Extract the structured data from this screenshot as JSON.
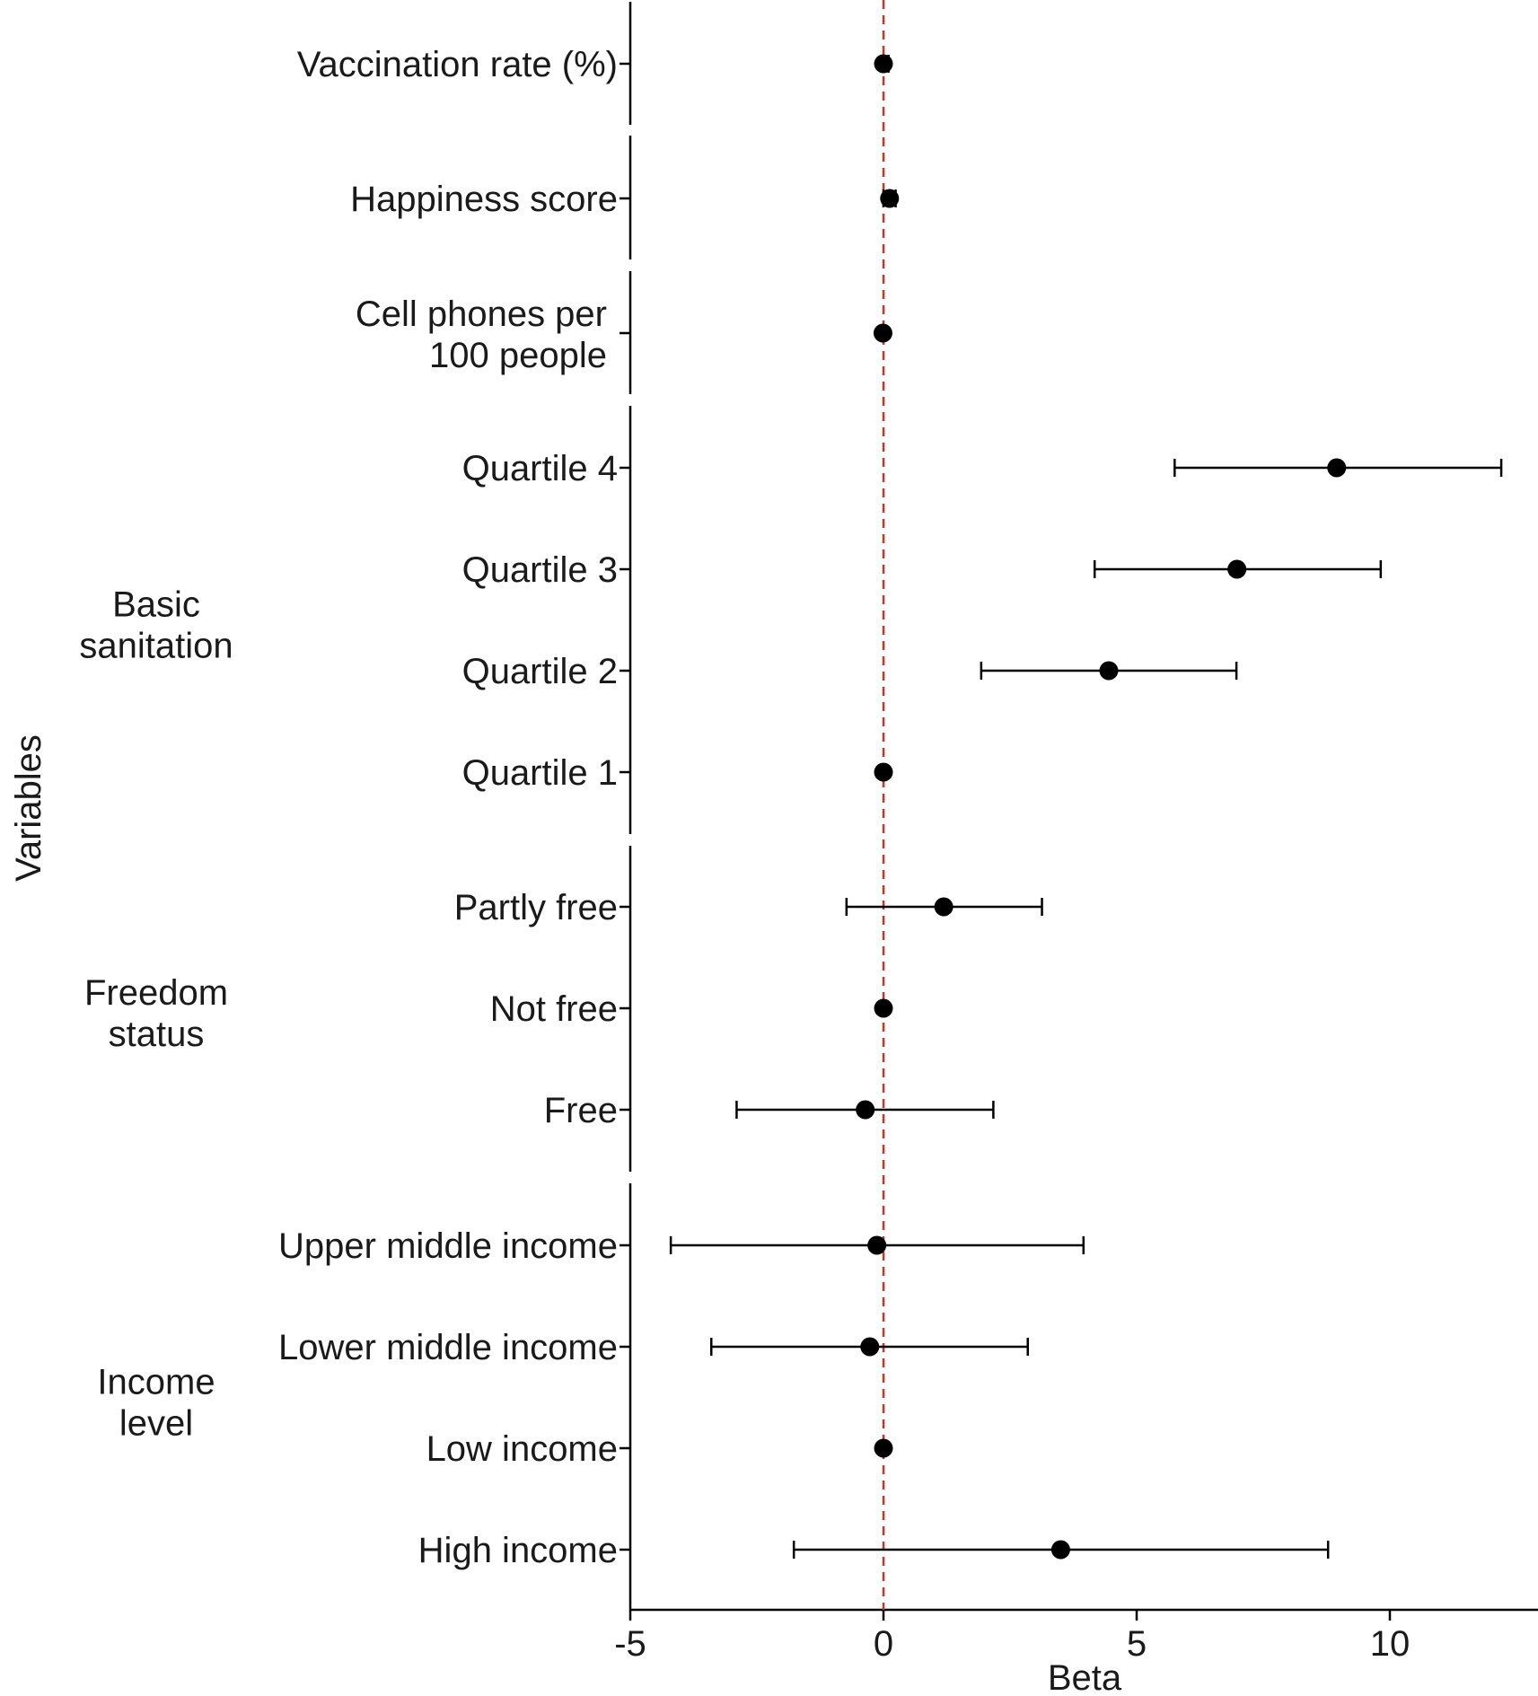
{
  "chart_data": {
    "type": "forest",
    "title": "",
    "xlabel": "Beta",
    "ylabel": "Variables",
    "xlim": [
      -5,
      12.9
    ],
    "x_ticks": [
      -5,
      0,
      5,
      10
    ],
    "x_tick_labels": [
      "-5",
      "0",
      "5",
      "10"
    ],
    "reference_line": {
      "x": 0,
      "color": "#c0392b",
      "style": "dashed"
    },
    "colors": {
      "points": "#000000",
      "error_bars": "#000000",
      "axis": "#000000"
    },
    "groups": [
      {
        "label": [
          "",
          ""
        ],
        "rows": [
          {
            "label": [
              "Vaccination rate (%)"
            ],
            "beta": 0.0,
            "ci_low": -0.05,
            "ci_high": 0.1
          }
        ]
      },
      {
        "label": [
          "",
          ""
        ],
        "rows": [
          {
            "label": [
              "Happiness score"
            ],
            "beta": 0.12,
            "ci_low": 0.0,
            "ci_high": 0.24
          }
        ]
      },
      {
        "label": [
          "",
          ""
        ],
        "rows": [
          {
            "label": [
              "Cell phones per",
              "100 people"
            ],
            "beta": -0.01,
            "ci_low": -0.03,
            "ci_high": 0.01
          }
        ]
      },
      {
        "label": [
          "Basic",
          "sanitation"
        ],
        "rows": [
          {
            "label": [
              "Quartile 4"
            ],
            "beta": 8.95,
            "ci_low": 5.75,
            "ci_high": 12.2
          },
          {
            "label": [
              "Quartile 3"
            ],
            "beta": 6.98,
            "ci_low": 4.17,
            "ci_high": 9.82
          },
          {
            "label": [
              "Quartile 2"
            ],
            "beta": 4.45,
            "ci_low": 1.93,
            "ci_high": 6.97
          },
          {
            "label": [
              "Quartile 1"
            ],
            "beta": 0.0,
            "ci_low": null,
            "ci_high": null
          }
        ]
      },
      {
        "label": [
          "Freedom",
          "status"
        ],
        "rows": [
          {
            "label": [
              "Partly free"
            ],
            "beta": 1.19,
            "ci_low": -0.73,
            "ci_high": 3.13
          },
          {
            "label": [
              "Not free"
            ],
            "beta": 0.0,
            "ci_low": null,
            "ci_high": null
          },
          {
            "label": [
              "Free"
            ],
            "beta": -0.36,
            "ci_low": -2.9,
            "ci_high": 2.17
          }
        ]
      },
      {
        "label": [
          "Income",
          "level"
        ],
        "rows": [
          {
            "label": [
              "Upper middle income"
            ],
            "beta": -0.13,
            "ci_low": -4.2,
            "ci_high": 3.95
          },
          {
            "label": [
              "Lower middle income"
            ],
            "beta": -0.27,
            "ci_low": -3.4,
            "ci_high": 2.85
          },
          {
            "label": [
              "Low income"
            ],
            "beta": 0.0,
            "ci_low": null,
            "ci_high": null
          },
          {
            "label": [
              "High income"
            ],
            "beta": 3.5,
            "ci_low": -1.77,
            "ci_high": 8.78
          }
        ]
      }
    ]
  }
}
